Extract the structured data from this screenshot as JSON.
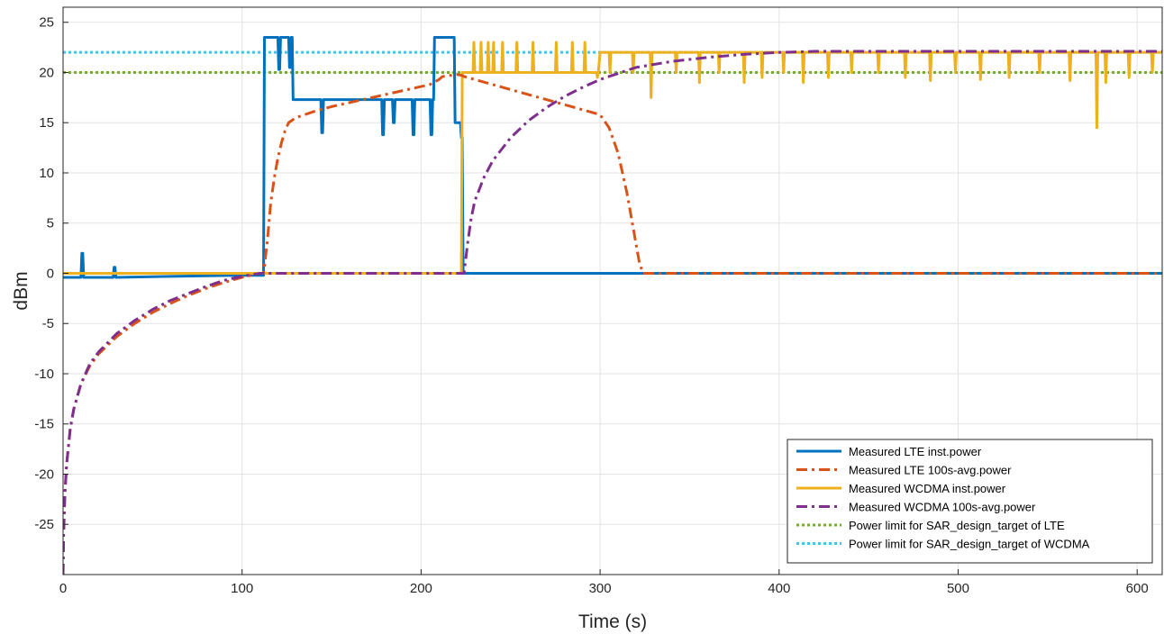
{
  "chart_data": {
    "type": "line",
    "title": "",
    "xlabel": "Time (s)",
    "ylabel": "dBm",
    "xlim": [
      0,
      614
    ],
    "ylim": [
      -30,
      26.5
    ],
    "xticks": [
      0,
      100,
      200,
      300,
      400,
      500,
      600
    ],
    "yticks": [
      -25,
      -20,
      -15,
      -10,
      -5,
      0,
      5,
      10,
      15,
      20,
      25
    ],
    "grid": true,
    "legend_position": "bottom-right",
    "series": [
      {
        "name": "Measured LTE inst.power",
        "color": "#0072BD",
        "style": "solid",
        "x": [
          0,
          10,
          10.5,
          11,
          11.5,
          28,
          28.5,
          29,
          29.5,
          60,
          100,
          112,
          112.5,
          113,
          113.5,
          120,
          120.5,
          121,
          121.5,
          126,
          126.5,
          127,
          127.5,
          128,
          128.5,
          144,
          144.5,
          145,
          145.5,
          178,
          178.5,
          179,
          179.5,
          184,
          184.5,
          185,
          185.5,
          195,
          195.5,
          196,
          196.5,
          205,
          205.5,
          206,
          206.5,
          207,
          207.5,
          208,
          208.5,
          218,
          218.5,
          219,
          219.5,
          222,
          222.5,
          223,
          223.5,
          224,
          300,
          400,
          500,
          614
        ],
        "y": [
          -0.4,
          -0.4,
          2,
          2,
          -0.4,
          -0.4,
          0.6,
          0.6,
          -0.4,
          -0.3,
          -0.2,
          -0.2,
          23.5,
          23.5,
          23.5,
          23.5,
          20.3,
          20.3,
          23.5,
          23.5,
          20.5,
          20.5,
          23.5,
          23.5,
          17.3,
          17.3,
          14,
          14,
          17.3,
          17.3,
          13.8,
          13.8,
          17.3,
          17.3,
          15,
          15,
          17.3,
          17.3,
          13.8,
          13.8,
          17.3,
          17.3,
          13.8,
          13.8,
          17.3,
          17.3,
          23.5,
          23.5,
          23.5,
          23.5,
          23.5,
          15,
          15,
          15,
          13.5,
          13.5,
          0,
          0,
          0,
          0,
          0,
          0
        ]
      },
      {
        "name": "Measured LTE 100s-avg.power",
        "color": "#D95319",
        "style": "dashdot",
        "x": [
          0,
          0.3,
          1,
          2,
          4,
          6,
          10,
          15,
          20,
          30,
          40,
          50,
          60,
          70,
          80,
          90,
          100,
          110,
          112,
          114,
          116,
          118,
          120,
          122,
          124,
          126,
          130,
          140,
          150,
          160,
          170,
          180,
          190,
          200,
          205,
          210,
          212,
          216,
          220,
          223,
          224,
          230,
          240,
          250,
          260,
          270,
          280,
          290,
          300,
          305,
          310,
          315,
          318,
          320,
          322,
          324,
          400,
          500,
          614
        ],
        "y": [
          -30,
          -26,
          -22,
          -19,
          -15.5,
          -13.5,
          -11,
          -9.2,
          -8,
          -6.3,
          -5,
          -3.9,
          -3,
          -2.2,
          -1.5,
          -0.9,
          -0.4,
          0,
          0,
          3,
          7,
          9.5,
          11.5,
          13,
          14.2,
          15,
          15.5,
          16.1,
          16.6,
          17,
          17.4,
          17.8,
          18.2,
          18.6,
          18.8,
          19.3,
          19.6,
          19.7,
          19.8,
          19.7,
          19.6,
          19.3,
          18.8,
          18.3,
          17.8,
          17.3,
          16.8,
          16.3,
          15.8,
          14.5,
          12,
          8,
          5,
          3,
          1,
          0,
          0,
          0,
          0
        ]
      },
      {
        "name": "Measured WCDMA inst.power",
        "color": "#EDB120",
        "style": "solid",
        "x": [
          0,
          112,
          113,
          200,
          222,
          222.5,
          223,
          223.5,
          224,
          225,
          229,
          229.5,
          230,
          233,
          233.5,
          234,
          237,
          237.5,
          238,
          240,
          240.5,
          241,
          245,
          245.5,
          246,
          253,
          253.5,
          254,
          262,
          262.5,
          263,
          275,
          275.5,
          276,
          284,
          284.5,
          285,
          291,
          291.5,
          292,
          298,
          298.5,
          299,
          300,
          305,
          305.5,
          306,
          318,
          318.5,
          319,
          328,
          328.5,
          329,
          342,
          342.5,
          343,
          355,
          355.5,
          356,
          366,
          366.5,
          367,
          380,
          380.5,
          381,
          390,
          390.5,
          391,
          402,
          402.5,
          403,
          413,
          413.5,
          414,
          427,
          427.5,
          428,
          440,
          440.5,
          441,
          455,
          455.5,
          456,
          470,
          470.5,
          471,
          484,
          484.5,
          485,
          498,
          498.5,
          499,
          512,
          512.5,
          513,
          528,
          528.5,
          529,
          545,
          545.5,
          546,
          562,
          562.5,
          563,
          577,
          577.5,
          578,
          582,
          582.5,
          583,
          595,
          595.5,
          596,
          608,
          608.5,
          609,
          614
        ],
        "y": [
          0,
          0,
          0,
          0,
          0,
          0,
          20,
          20,
          20,
          20,
          20,
          23,
          20,
          20,
          23,
          20,
          20,
          23,
          20,
          20,
          23,
          20,
          20,
          23,
          20,
          20,
          23,
          20,
          20,
          23,
          20,
          20,
          23,
          20,
          20,
          23,
          20,
          20,
          23,
          20,
          20,
          19.5,
          20,
          22,
          22,
          20,
          22,
          22,
          20,
          22,
          22,
          17.5,
          22,
          22,
          20,
          22,
          22,
          19,
          22,
          22,
          20,
          22,
          22,
          19,
          22,
          22,
          19.5,
          22,
          22,
          20,
          22,
          22,
          19,
          22,
          22,
          19.5,
          22,
          22,
          20,
          22,
          22,
          20,
          22,
          22,
          19.5,
          22,
          22,
          19.2,
          22,
          22,
          20,
          22,
          22,
          19.3,
          22,
          22,
          19.5,
          22,
          22,
          20,
          22,
          22,
          19.2,
          22,
          22,
          14.5,
          22,
          22,
          19,
          22,
          22,
          19.5,
          22,
          22,
          20,
          22,
          22
        ]
      },
      {
        "name": "Measured WCDMA 100s-avg.power",
        "color": "#7E2F8E",
        "style": "dashdot",
        "x": [
          0,
          0.3,
          1,
          2,
          4,
          6,
          10,
          15,
          20,
          30,
          40,
          50,
          60,
          70,
          80,
          90,
          100,
          110,
          112,
          150,
          223,
          224,
          226,
          228,
          230,
          235,
          240,
          250,
          260,
          270,
          280,
          290,
          300,
          320,
          340,
          360,
          380,
          400,
          420,
          614
        ],
        "y": [
          -30,
          -26,
          -22,
          -19,
          -15.5,
          -13.5,
          -11,
          -9,
          -7.8,
          -6,
          -4.7,
          -3.6,
          -2.7,
          -2,
          -1.3,
          -0.7,
          -0.3,
          0,
          0,
          0,
          0,
          0,
          3,
          5.5,
          7.2,
          9.5,
          11.2,
          13.5,
          15.2,
          16.5,
          17.6,
          18.5,
          19.3,
          20.5,
          21.1,
          21.5,
          21.8,
          22,
          22.1,
          22.1
        ]
      },
      {
        "name": "Power limit for SAR_design_target of LTE",
        "color": "#77AC30",
        "style": "dotted",
        "x": [
          0,
          614
        ],
        "y": [
          20,
          20
        ]
      },
      {
        "name": "Power limit for SAR_design_target of WCDMA",
        "color": "#4DBEEE",
        "style": "dotted",
        "x": [
          0,
          614
        ],
        "y": [
          22,
          22
        ]
      }
    ]
  }
}
